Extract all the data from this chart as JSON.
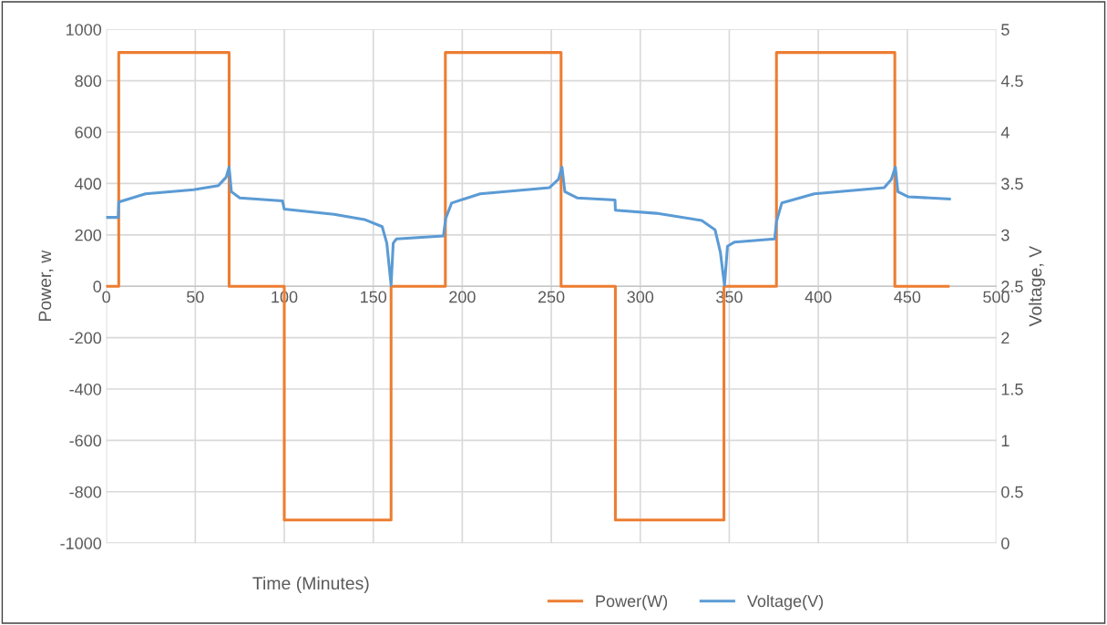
{
  "chart_data": {
    "type": "line",
    "xlabel": "Time (Minutes)",
    "ylabel": "Power, w",
    "y2label": "Voltage, V",
    "xlim": [
      0,
      500
    ],
    "xticks": [
      0,
      50,
      100,
      150,
      200,
      250,
      300,
      350,
      400,
      450,
      500
    ],
    "ylim": [
      -1000,
      1000
    ],
    "yticks": [
      -1000,
      -800,
      -600,
      -400,
      -200,
      0,
      200,
      400,
      600,
      800,
      1000
    ],
    "y2lim": [
      0,
      5
    ],
    "y2ticks": [
      0,
      0.5,
      1,
      1.5,
      2,
      2.5,
      3,
      3.5,
      4,
      4.5,
      5
    ],
    "grid": true,
    "legend": "bottom",
    "line_style": "solid",
    "marker": "none",
    "series": [
      {
        "name": "Power(W)",
        "color": "#ed7d31",
        "type": "line",
        "x": [
          0,
          7,
          7,
          69,
          69,
          100,
          100,
          160,
          160,
          190.5,
          190.5,
          255.5,
          255.5,
          286,
          286,
          347,
          347,
          376.5,
          376.5,
          443,
          443,
          473
        ],
        "values": [
          0,
          0,
          910,
          910,
          0,
          0,
          -910,
          -910,
          0,
          0,
          910,
          910,
          0,
          0,
          -910,
          -910,
          0,
          0,
          910,
          910,
          0,
          0
        ]
      },
      {
        "name": "Voltage(V)",
        "color": "#5b9bd5",
        "type": "line",
        "axis": "y2",
        "x": [
          0,
          6.7,
          7,
          22,
          49,
          63,
          67.3,
          69,
          70.3,
          75,
          99,
          100,
          128,
          145,
          155,
          157.6,
          160,
          161.2,
          163,
          189.4,
          190.7,
          194,
          210,
          249,
          254,
          256,
          257.6,
          264.5,
          285.8,
          286,
          309,
          334.5,
          342,
          345,
          347.3,
          349,
          353,
          375.5,
          376.5,
          379.5,
          397.7,
          437,
          441,
          443.3,
          444.7,
          450.6,
          473.7
        ],
        "values": [
          3.17,
          3.17,
          3.32,
          3.4,
          3.44,
          3.48,
          3.56,
          3.66,
          3.42,
          3.36,
          3.33,
          3.25,
          3.2,
          3.15,
          3.08,
          2.92,
          2.51,
          2.92,
          2.96,
          2.99,
          3.16,
          3.31,
          3.4,
          3.46,
          3.54,
          3.66,
          3.42,
          3.36,
          3.34,
          3.24,
          3.21,
          3.14,
          3.05,
          2.83,
          2.51,
          2.89,
          2.93,
          2.96,
          3.13,
          3.31,
          3.4,
          3.46,
          3.54,
          3.66,
          3.42,
          3.37,
          3.35
        ]
      }
    ]
  }
}
